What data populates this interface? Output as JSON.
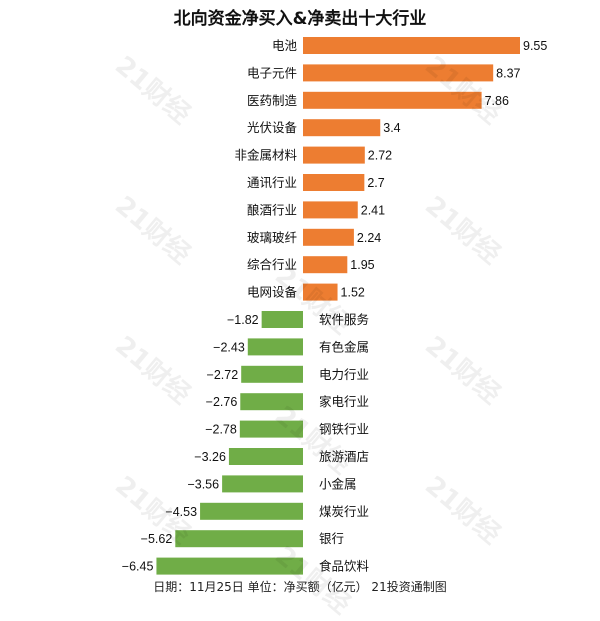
{
  "chart_data": {
    "type": "bar",
    "orientation": "horizontal",
    "title": "北向资金净买入&净卖出十大行业",
    "categories": [
      "电池",
      "电子元件",
      "医药制造",
      "光伏设备",
      "非金属材料",
      "通讯行业",
      "酿酒行业",
      "玻璃玻纤",
      "综合行业",
      "电网设备",
      "软件服务",
      "有色金属",
      "电力行业",
      "家电行业",
      "钢铁行业",
      "旅游酒店",
      "小金属",
      "煤炭行业",
      "银行",
      "食品饮料"
    ],
    "values": [
      9.55,
      8.37,
      7.86,
      3.4,
      2.72,
      2.7,
      2.41,
      2.24,
      1.95,
      1.52,
      -1.82,
      -2.43,
      -2.72,
      -2.76,
      -2.78,
      -3.26,
      -3.56,
      -4.53,
      -5.62,
      -6.45
    ],
    "value_labels": [
      "9.55",
      "8.37",
      "7.86",
      "3.4",
      "2.72",
      "2.7",
      "2.41",
      "2.24",
      "1.95",
      "1.52",
      "−1.82",
      "−2.43",
      "−2.72",
      "−2.76",
      "−2.78",
      "−3.26",
      "−3.56",
      "−4.53",
      "−5.62",
      "−6.45"
    ],
    "colors": {
      "positive": "#ED7D31",
      "negative": "#70AD47"
    },
    "xlim": [
      -6.45,
      9.55
    ],
    "grid": false,
    "legend": "none"
  },
  "footer": "日期：11月25日 单位：净买额（亿元）  21投资通制图",
  "watermark": "21财经"
}
